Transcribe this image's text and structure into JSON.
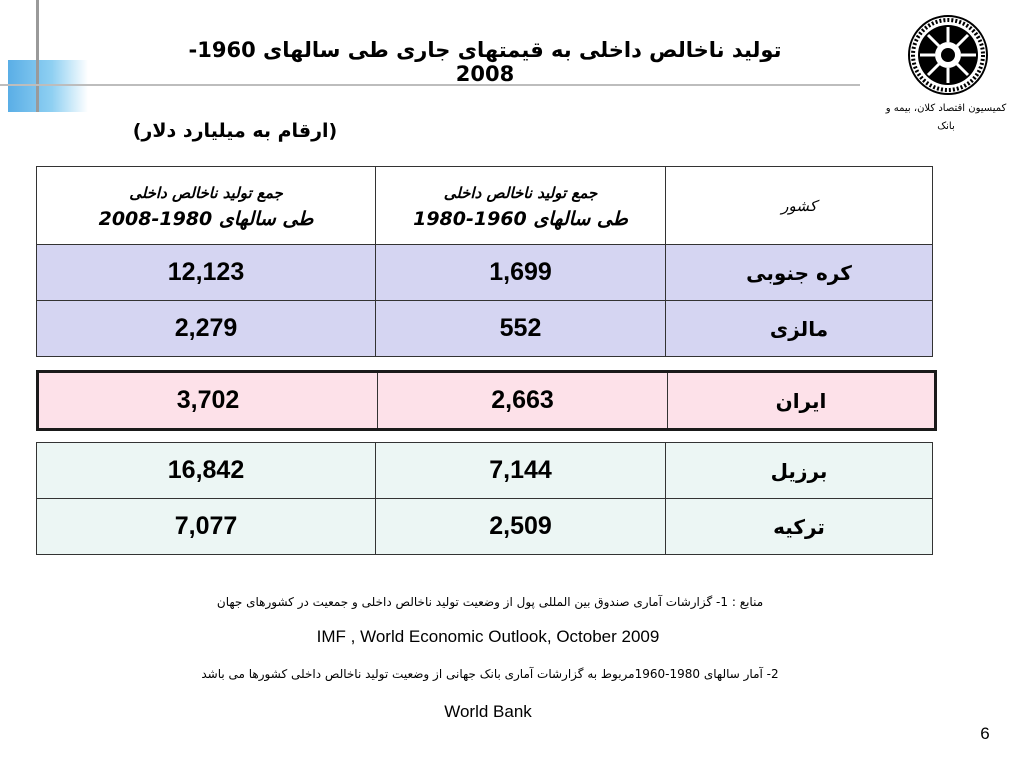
{
  "title": "تولید ناخالص داخلی به قیمتهای جاری طی سالهای 1960-2008",
  "unit_note": "(ارقام به میلیارد دلار)",
  "organization": {
    "logo_icon": "chamber-of-commerce-seal-icon",
    "logo_ring_text": "CHAMBER OF COMMERCE INDUSTRIES AND MINES",
    "commission_line1": "کمیسیون اقتصاد کلان، بیمه و",
    "commission_line2": "بانک"
  },
  "table": {
    "header": {
      "country": "کشور",
      "col_1960_line1": "جمع تولید ناخالص داخلی",
      "col_1960_line2": "طی سالهای 1960-1980",
      "col_1980_line1": "جمع تولید ناخالص داخلی",
      "col_1980_line2": "طی سالهای 1980-2008"
    },
    "rows": [
      {
        "country": "کره جنوبی",
        "gdp_1960_1980": "1,699",
        "gdp_1980_2008": "12,123"
      },
      {
        "country": "مالزی",
        "gdp_1960_1980": "552",
        "gdp_1980_2008": "2,279"
      },
      {
        "country": "ایران",
        "gdp_1960_1980": "2,663",
        "gdp_1980_2008": "3,702"
      },
      {
        "country": "برزیل",
        "gdp_1960_1980": "7,144",
        "gdp_1980_2008": "16,842"
      },
      {
        "country": "ترکیه",
        "gdp_1960_1980": "2,509",
        "gdp_1980_2008": "7,077"
      }
    ]
  },
  "sources": {
    "line1": "منابع : 1- گزارشات آماری صندوق بین المللی پول از وضعیت تولید ناخالص داخلی و جمعیت در کشورهای جهان",
    "imf": "IMF , World Economic Outlook, October 2009",
    "line2": "2- آمار سالهای 1980-1960مربوط به گزارشات آماری بانک جهانی از وضعیت تولید ناخالص داخلی کشورها می باشد",
    "world_bank": "World Bank"
  },
  "page_number": "6",
  "colors": {
    "row_highlight_blue": "#d5d5f2",
    "row_highlight_iran": "#fde1e9",
    "row_highlight_green": "#ecf6f4",
    "accent_blue": "#5aaee6"
  }
}
